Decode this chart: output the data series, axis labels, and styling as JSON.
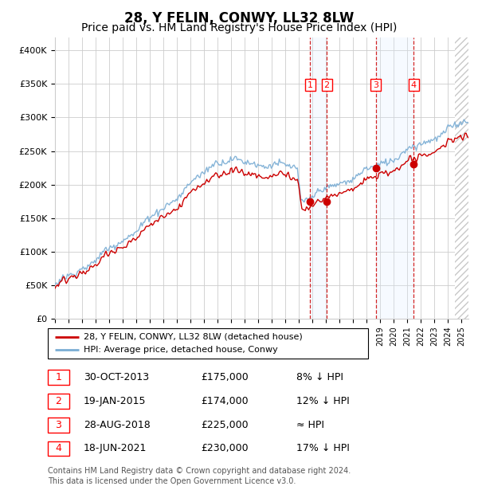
{
  "title": "28, Y FELIN, CONWY, LL32 8LW",
  "subtitle": "Price paid vs. HM Land Registry's House Price Index (HPI)",
  "ylim": [
    0,
    420000
  ],
  "yticks": [
    0,
    50000,
    100000,
    150000,
    200000,
    250000,
    300000,
    350000,
    400000
  ],
  "ytick_labels": [
    "£0",
    "£50K",
    "£100K",
    "£150K",
    "£200K",
    "£250K",
    "£300K",
    "£350K",
    "£400K"
  ],
  "xmin": 1995.0,
  "xmax": 2025.5,
  "sale_dates": [
    2013.83,
    2015.05,
    2018.66,
    2021.46
  ],
  "sale_prices": [
    175000,
    174000,
    225000,
    230000
  ],
  "sale_labels": [
    "1",
    "2",
    "3",
    "4"
  ],
  "vspan_ranges": [
    [
      2013.83,
      2015.05
    ],
    [
      2018.66,
      2021.46
    ]
  ],
  "sale_color": "#cc0000",
  "hpi_color": "#7aadd4",
  "prop_color": "#cc0000",
  "legend_entries": [
    "28, Y FELIN, CONWY, LL32 8LW (detached house)",
    "HPI: Average price, detached house, Conwy"
  ],
  "table_rows": [
    [
      "1",
      "30-OCT-2013",
      "£175,000",
      "8% ↓ HPI"
    ],
    [
      "2",
      "19-JAN-2015",
      "£174,000",
      "12% ↓ HPI"
    ],
    [
      "3",
      "28-AUG-2018",
      "£225,000",
      "≈ HPI"
    ],
    [
      "4",
      "18-JUN-2021",
      "£230,000",
      "17% ↓ HPI"
    ]
  ],
  "footnote": "Contains HM Land Registry data © Crown copyright and database right 2024.\nThis data is licensed under the Open Government Licence v3.0.",
  "bg_color": "#ffffff",
  "grid_color": "#cccccc",
  "vspan_color": "#ddeeff",
  "hatch_color": "#c8c8c8",
  "title_fontsize": 12,
  "subtitle_fontsize": 10,
  "axis_fontsize": 8
}
